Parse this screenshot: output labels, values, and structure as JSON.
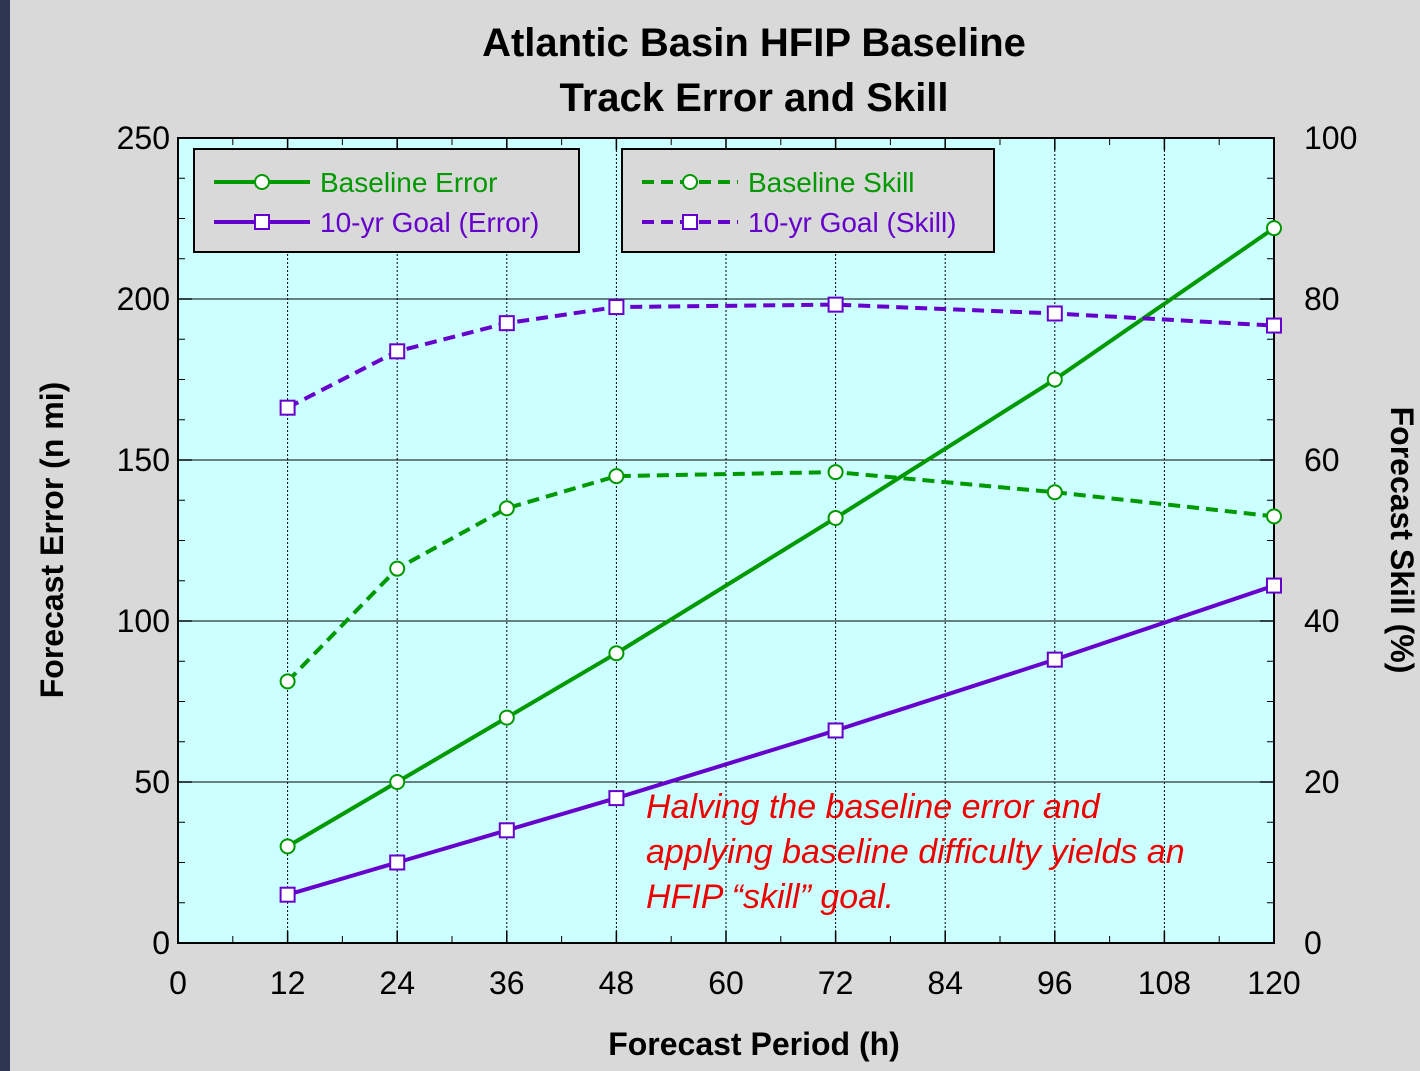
{
  "chart_data": {
    "type": "line",
    "title": "Atlantic Basin HFIP Baseline",
    "subtitle": "Track Error and Skill",
    "xlabel": "Forecast Period (h)",
    "ylabel": "Forecast Error (n mi)",
    "y2label": "Forecast Skill (%)",
    "xlim": [
      0,
      120
    ],
    "ylim": [
      0,
      250
    ],
    "y2lim": [
      0,
      100
    ],
    "xticks": [
      "0",
      "12",
      "24",
      "36",
      "48",
      "60",
      "72",
      "84",
      "96",
      "108",
      "120"
    ],
    "yticks": [
      "0",
      "50",
      "100",
      "150",
      "200",
      "250"
    ],
    "y2ticks": [
      "0",
      "20",
      "40",
      "60",
      "80",
      "100"
    ],
    "grid": true,
    "plot_background": "#ccffff",
    "x": [
      12,
      24,
      36,
      48,
      72,
      96,
      120
    ],
    "series": [
      {
        "name": "Baseline Error",
        "axis": "left",
        "color": "#009900",
        "dashed": false,
        "marker": "circle",
        "values": [
          30,
          50,
          70,
          90,
          132,
          175,
          222
        ]
      },
      {
        "name": "10-yr Goal (Error)",
        "axis": "left",
        "color": "#6600cc",
        "dashed": false,
        "marker": "square",
        "values": [
          15,
          25,
          35,
          45,
          66,
          88,
          111
        ]
      },
      {
        "name": "Baseline Skill",
        "axis": "right",
        "color": "#009900",
        "dashed": true,
        "marker": "circle",
        "values": [
          32.5,
          46.5,
          54,
          58,
          58.5,
          56,
          53
        ]
      },
      {
        "name": "10-yr Goal (Skill)",
        "axis": "right",
        "color": "#6600cc",
        "dashed": true,
        "marker": "square",
        "values": [
          66.5,
          73.5,
          77,
          79,
          79.3,
          78.2,
          76.7
        ]
      }
    ],
    "annotation": {
      "color": "#ee0000",
      "lines": [
        "Halving the baseline error and",
        "applying baseline difficulty yields an",
        "HFIP “skill” goal."
      ]
    },
    "legends": [
      {
        "placement": "top-left",
        "series": [
          0,
          1
        ]
      },
      {
        "placement": "top-center",
        "series": [
          2,
          3
        ]
      }
    ]
  }
}
